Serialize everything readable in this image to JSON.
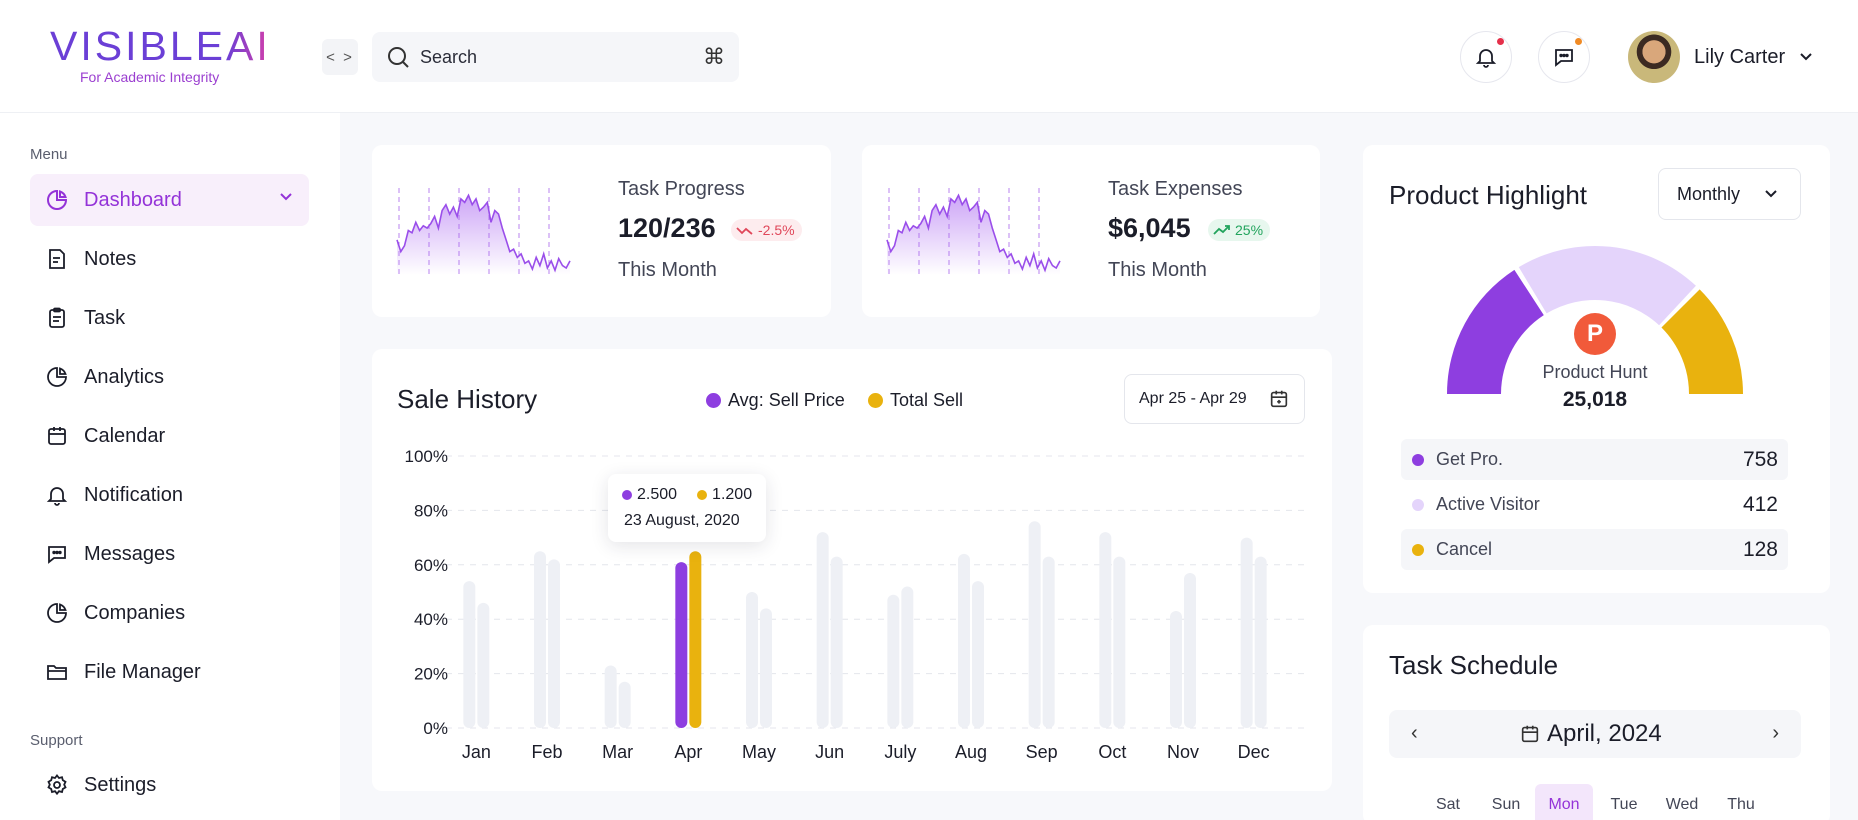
{
  "brand": {
    "logo_prefix": "VISIBLE",
    "logo_suffix": "AI",
    "tagline": "For Academic Integrity",
    "accent": "#9433d8"
  },
  "header": {
    "collapse_icon": "code-brackets-icon",
    "search_placeholder": "Search",
    "search_shortcut": "⌘",
    "notification_dot_color": "#e5304a",
    "message_dot_color": "#f08a24",
    "user_name": "Lily Carter"
  },
  "sidebar": {
    "menu_label": "Menu",
    "support_label": "Support",
    "items": [
      {
        "label": "Dashboard",
        "icon": "pie-chart-icon",
        "active": true
      },
      {
        "label": "Notes",
        "icon": "note-icon"
      },
      {
        "label": "Task",
        "icon": "clipboard-icon"
      },
      {
        "label": "Analytics",
        "icon": "pie-chart-icon"
      },
      {
        "label": "Calendar",
        "icon": "calendar-icon"
      },
      {
        "label": "Notification",
        "icon": "bell-icon"
      },
      {
        "label": "Messages",
        "icon": "chat-icon"
      },
      {
        "label": "Companies",
        "icon": "pie-chart-icon"
      },
      {
        "label": "File Manager",
        "icon": "folder-icon"
      }
    ],
    "support_items": [
      {
        "label": "Settings",
        "icon": "gear-icon"
      }
    ]
  },
  "stats": {
    "task_progress": {
      "title": "Task Progress",
      "value": "120/236",
      "change": "-2.5%",
      "period": "This Month"
    },
    "task_expenses": {
      "title": "Task Expenses",
      "value": "$6,045",
      "change": "25%",
      "period": "This Month"
    }
  },
  "sale_history": {
    "title": "Sale History",
    "legend_avg": "Avg: Sell Price",
    "legend_total": "Total Sell",
    "date_range": "Apr 25 - Apr 29",
    "tooltip": {
      "avg": "2.500",
      "total": "1.200",
      "date": "23 August, 2020"
    }
  },
  "chart_data": {
    "type": "bar",
    "title": "Sale History",
    "categories": [
      "Jan",
      "Feb",
      "Mar",
      "Apr",
      "May",
      "Jun",
      "July",
      "Aug",
      "Sep",
      "Oct",
      "Nov",
      "Dec"
    ],
    "y_ticks": [
      "0%",
      "20%",
      "40%",
      "60%",
      "80%",
      "100%"
    ],
    "ylim": [
      0,
      100
    ],
    "highlight_index": 3,
    "series": [
      {
        "name": "Avg: Sell Price",
        "color": "#8e3ee0",
        "values": [
          54,
          65,
          23,
          61,
          50,
          72,
          49,
          64,
          76,
          72,
          43,
          70
        ]
      },
      {
        "name": "Total Sell",
        "color": "#e9b20e",
        "values": [
          46,
          62,
          17,
          65,
          44,
          63,
          52,
          54,
          63,
          63,
          57,
          63
        ]
      }
    ],
    "base_color": "#eef0f5",
    "sparkline": [
      30,
      20,
      25,
      38,
      36,
      45,
      38,
      42,
      40,
      44,
      50,
      40,
      55,
      60,
      52,
      58,
      50,
      65,
      62,
      68,
      60,
      65,
      55,
      58,
      62,
      45,
      55,
      52,
      40,
      30,
      20,
      22,
      15,
      18,
      10,
      12,
      5,
      15,
      8,
      18,
      6,
      12,
      4,
      14,
      8,
      6,
      12
    ]
  },
  "product_highlight": {
    "title": "Product Highlight",
    "period": "Monthly",
    "center_badge": "P",
    "center_label": "Product Hunt",
    "center_value": "25,018",
    "gauge": [
      {
        "label": "Get Pro.",
        "value": "758",
        "color": "#8e3ee0"
      },
      {
        "label": "Active Visitor",
        "value": "412",
        "color": "#e4d4fb"
      },
      {
        "label": "Cancel",
        "value": "128",
        "color": "#e9b20e"
      }
    ]
  },
  "task_schedule": {
    "title": "Task Schedule",
    "prev": "‹",
    "next": "›",
    "month": "April, 2024",
    "days": [
      "Sat",
      "Sun",
      "Mon",
      "Tue",
      "Wed",
      "Thu"
    ],
    "active_day": "Mon"
  }
}
